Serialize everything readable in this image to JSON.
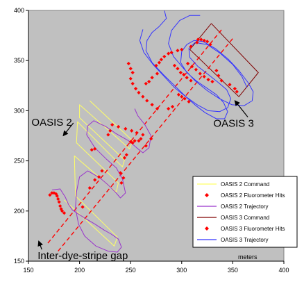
{
  "chart_data": {
    "type": "scatter",
    "xlabel": "meters",
    "ylabel": "",
    "xlim": [
      150,
      400
    ],
    "ylim": [
      150,
      400
    ],
    "xticks": [
      150,
      200,
      250,
      300,
      350,
      400
    ],
    "yticks": [
      150,
      200,
      250,
      300,
      350,
      400
    ],
    "grid": false,
    "background": "#c0c0c0",
    "legend": {
      "placement": "bottom-right",
      "entries": [
        {
          "label": "OASIS 2 Command",
          "style": "line",
          "color": "#ffff66"
        },
        {
          "label": "OASIS 2 Fluorometer Hits",
          "style": "marker",
          "color": "#ff0000"
        },
        {
          "label": "OASIS 2 Trajectory",
          "style": "line",
          "color": "#9933cc"
        },
        {
          "label": "OASIS 3 Command",
          "style": "line",
          "color": "#800000"
        },
        {
          "label": "OASIS 3 Fluorometer Hits",
          "style": "marker",
          "color": "#ff0000"
        },
        {
          "label": "OASIS 3 Trajectory",
          "style": "line",
          "color": "#3333ff"
        }
      ]
    },
    "annotations": [
      {
        "text": "OASIS 2",
        "text_at": [
          153,
          285
        ],
        "arrow_to": [
          184,
          275
        ]
      },
      {
        "text": "OASIS 3",
        "text_at": [
          331,
          284
        ],
        "arrow_to": [
          352,
          310
        ]
      },
      {
        "text": "Inter-dye-stripe gap",
        "text_at": [
          159,
          152
        ],
        "arrow_to": [
          160,
          170
        ]
      }
    ],
    "series": [
      {
        "name": "OASIS 2 Command",
        "color": "#ffff66",
        "polyline": [
          [
            185,
            211
          ],
          [
            234,
            165
          ],
          [
            237,
            174
          ],
          [
            196,
            215
          ],
          [
            195,
            255
          ],
          [
            236,
            219
          ],
          [
            238,
            228
          ],
          [
            197,
            268
          ],
          [
            198,
            289
          ],
          [
            242,
            244
          ],
          [
            244,
            251
          ],
          [
            200,
            293
          ],
          [
            200,
            306
          ],
          [
            249,
            262
          ],
          [
            252,
            270
          ],
          [
            210,
            310
          ]
        ]
      },
      {
        "name": "OASIS 3 Command",
        "color": "#800000",
        "polyline": [
          [
            329,
            387
          ],
          [
            375,
            338
          ],
          [
            356,
            314
          ],
          [
            308,
            361
          ],
          [
            329,
            387
          ]
        ]
      },
      {
        "name": "Dye stripe line 1",
        "color": "#ff0000",
        "dashed": true,
        "polyline": [
          [
            169,
            168
          ],
          [
            340,
            382
          ]
        ]
      },
      {
        "name": "Dye stripe line 2",
        "color": "#ff0000",
        "dashed": true,
        "polyline": [
          [
            179,
            160
          ],
          [
            350,
            372
          ]
        ]
      },
      {
        "name": "OASIS 2 Trajectory",
        "color": "#9933cc",
        "polyline": [
          [
            173,
            221
          ],
          [
            181,
            222
          ],
          [
            186,
            214
          ],
          [
            189,
            207
          ],
          [
            193,
            201
          ],
          [
            205,
            193
          ],
          [
            215,
            187
          ],
          [
            224,
            181
          ],
          [
            231,
            177
          ],
          [
            238,
            172
          ],
          [
            241,
            164
          ],
          [
            237,
            159
          ],
          [
            228,
            160
          ],
          [
            216,
            165
          ],
          [
            205,
            175
          ],
          [
            199,
            187
          ],
          [
            196,
            203
          ],
          [
            197,
            219
          ],
          [
            200,
            234
          ],
          [
            208,
            240
          ],
          [
            220,
            233
          ],
          [
            228,
            226
          ],
          [
            235,
            219
          ],
          [
            240,
            213
          ],
          [
            245,
            218
          ],
          [
            242,
            232
          ],
          [
            236,
            243
          ],
          [
            226,
            252
          ],
          [
            215,
            263
          ],
          [
            207,
            276
          ],
          [
            208,
            285
          ],
          [
            214,
            290
          ],
          [
            226,
            284
          ],
          [
            236,
            277
          ],
          [
            248,
            270
          ],
          [
            256,
            263
          ],
          [
            262,
            258
          ],
          [
            268,
            263
          ],
          [
            270,
            275
          ],
          [
            264,
            286
          ],
          [
            257,
            295
          ],
          [
            254,
            302
          ]
        ]
      },
      {
        "name": "OASIS 3 Trajectory",
        "color": "#3333ff",
        "polyline": [
          [
            283,
            400
          ],
          [
            285,
            392
          ],
          [
            278,
            384
          ],
          [
            271,
            378
          ],
          [
            266,
            370
          ],
          [
            265,
            360
          ],
          [
            271,
            348
          ],
          [
            282,
            336
          ],
          [
            294,
            324
          ],
          [
            304,
            314
          ],
          [
            314,
            305
          ],
          [
            323,
            298
          ],
          [
            334,
            292
          ],
          [
            342,
            292
          ],
          [
            345,
            299
          ],
          [
            341,
            308
          ],
          [
            334,
            316
          ],
          [
            324,
            323
          ],
          [
            314,
            330
          ],
          [
            305,
            338
          ],
          [
            299,
            348
          ],
          [
            300,
            359
          ],
          [
            305,
            366
          ],
          [
            312,
            370
          ],
          [
            321,
            369
          ],
          [
            333,
            362
          ],
          [
            346,
            351
          ],
          [
            356,
            340
          ],
          [
            365,
            328
          ],
          [
            370,
            319
          ],
          [
            369,
            310
          ],
          [
            361,
            305
          ],
          [
            349,
            306
          ],
          [
            337,
            312
          ],
          [
            325,
            320
          ],
          [
            313,
            330
          ],
          [
            302,
            342
          ],
          [
            292,
            354
          ],
          [
            287,
            367
          ],
          [
            290,
            380
          ],
          [
            298,
            390
          ],
          [
            308,
            395
          ],
          [
            318,
            395
          ]
        ]
      },
      {
        "name": "OASIS 3 Trajectory (inner loop)",
        "color": "#3333ff",
        "polyline": [
          [
            262,
            381
          ],
          [
            259,
            370
          ],
          [
            263,
            358
          ],
          [
            272,
            346
          ],
          [
            283,
            334
          ],
          [
            293,
            323
          ],
          [
            304,
            314
          ],
          [
            315,
            306
          ],
          [
            326,
            300
          ],
          [
            337,
            299
          ],
          [
            345,
            303
          ],
          [
            348,
            312
          ],
          [
            344,
            321
          ],
          [
            336,
            328
          ],
          [
            326,
            336
          ],
          [
            316,
            344
          ],
          [
            308,
            353
          ],
          [
            307,
            362
          ],
          [
            313,
            368
          ],
          [
            325,
            366
          ],
          [
            338,
            357
          ],
          [
            350,
            346
          ],
          [
            359,
            334
          ],
          [
            364,
            323
          ]
        ]
      },
      {
        "name": "OASIS 2 Fluorometer Hits",
        "color": "#ff0000",
        "points": [
          [
            171,
            216
          ],
          [
            173,
            218
          ],
          [
            175,
            218
          ],
          [
            177,
            217
          ],
          [
            178,
            215
          ],
          [
            179,
            212
          ],
          [
            180,
            209
          ],
          [
            181,
            205
          ],
          [
            182,
            202
          ],
          [
            183,
            200
          ],
          [
            185,
            198
          ],
          [
            203,
            204
          ],
          [
            210,
            223
          ],
          [
            215,
            231
          ],
          [
            219,
            234
          ],
          [
            222,
            240
          ],
          [
            240,
            238
          ],
          [
            241,
            228
          ],
          [
            243,
            233
          ],
          [
            212,
            261
          ],
          [
            215,
            262
          ],
          [
            228,
            276
          ],
          [
            230,
            280
          ],
          [
            232,
            286
          ],
          [
            238,
            284
          ],
          [
            245,
            282
          ],
          [
            251,
            280
          ],
          [
            256,
            278
          ],
          [
            262,
            276
          ],
          [
            270,
            272
          ],
          [
            250,
            269
          ],
          [
            252,
            268
          ],
          [
            254,
            270
          ],
          [
            258,
            270
          ],
          [
            260,
            272
          ],
          [
            265,
            265
          ],
          [
            246,
            256
          ],
          [
            244,
            253
          ]
        ]
      },
      {
        "name": "OASIS 3 Fluorometer Hits",
        "color": "#ff0000",
        "points": [
          [
            248,
            347
          ],
          [
            250,
            342
          ],
          [
            252,
            338
          ],
          [
            250,
            332
          ],
          [
            252,
            327
          ],
          [
            255,
            322
          ],
          [
            258,
            318
          ],
          [
            262,
            314
          ],
          [
            266,
            310
          ],
          [
            271,
            306
          ],
          [
            276,
            302
          ],
          [
            287,
            302
          ],
          [
            291,
            304
          ],
          [
            297,
            316
          ],
          [
            300,
            314
          ],
          [
            303,
            312
          ],
          [
            307,
            309
          ],
          [
            265,
            327
          ],
          [
            268,
            329
          ],
          [
            271,
            333
          ],
          [
            276,
            337
          ],
          [
            275,
            345
          ],
          [
            278,
            348
          ],
          [
            280,
            351
          ],
          [
            283,
            354
          ],
          [
            287,
            357
          ],
          [
            290,
            358
          ],
          [
            296,
            360
          ],
          [
            300,
            361
          ],
          [
            309,
            364
          ],
          [
            315,
            368
          ],
          [
            316,
            371
          ],
          [
            319,
            371
          ],
          [
            322,
            370
          ],
          [
            325,
            369
          ],
          [
            328,
            366
          ],
          [
            334,
            340
          ],
          [
            336,
            335
          ],
          [
            339,
            330
          ],
          [
            347,
            326
          ],
          [
            352,
            322
          ],
          [
            354,
            319
          ],
          [
            306,
            347
          ],
          [
            310,
            344
          ],
          [
            314,
            341
          ],
          [
            318,
            337
          ],
          [
            322,
            334
          ],
          [
            326,
            331
          ],
          [
            330,
            329
          ],
          [
            293,
            345
          ],
          [
            296,
            342
          ],
          [
            299,
            338
          ],
          [
            302,
            336
          ],
          [
            305,
            333
          ],
          [
            309,
            330
          ]
        ]
      }
    ]
  }
}
